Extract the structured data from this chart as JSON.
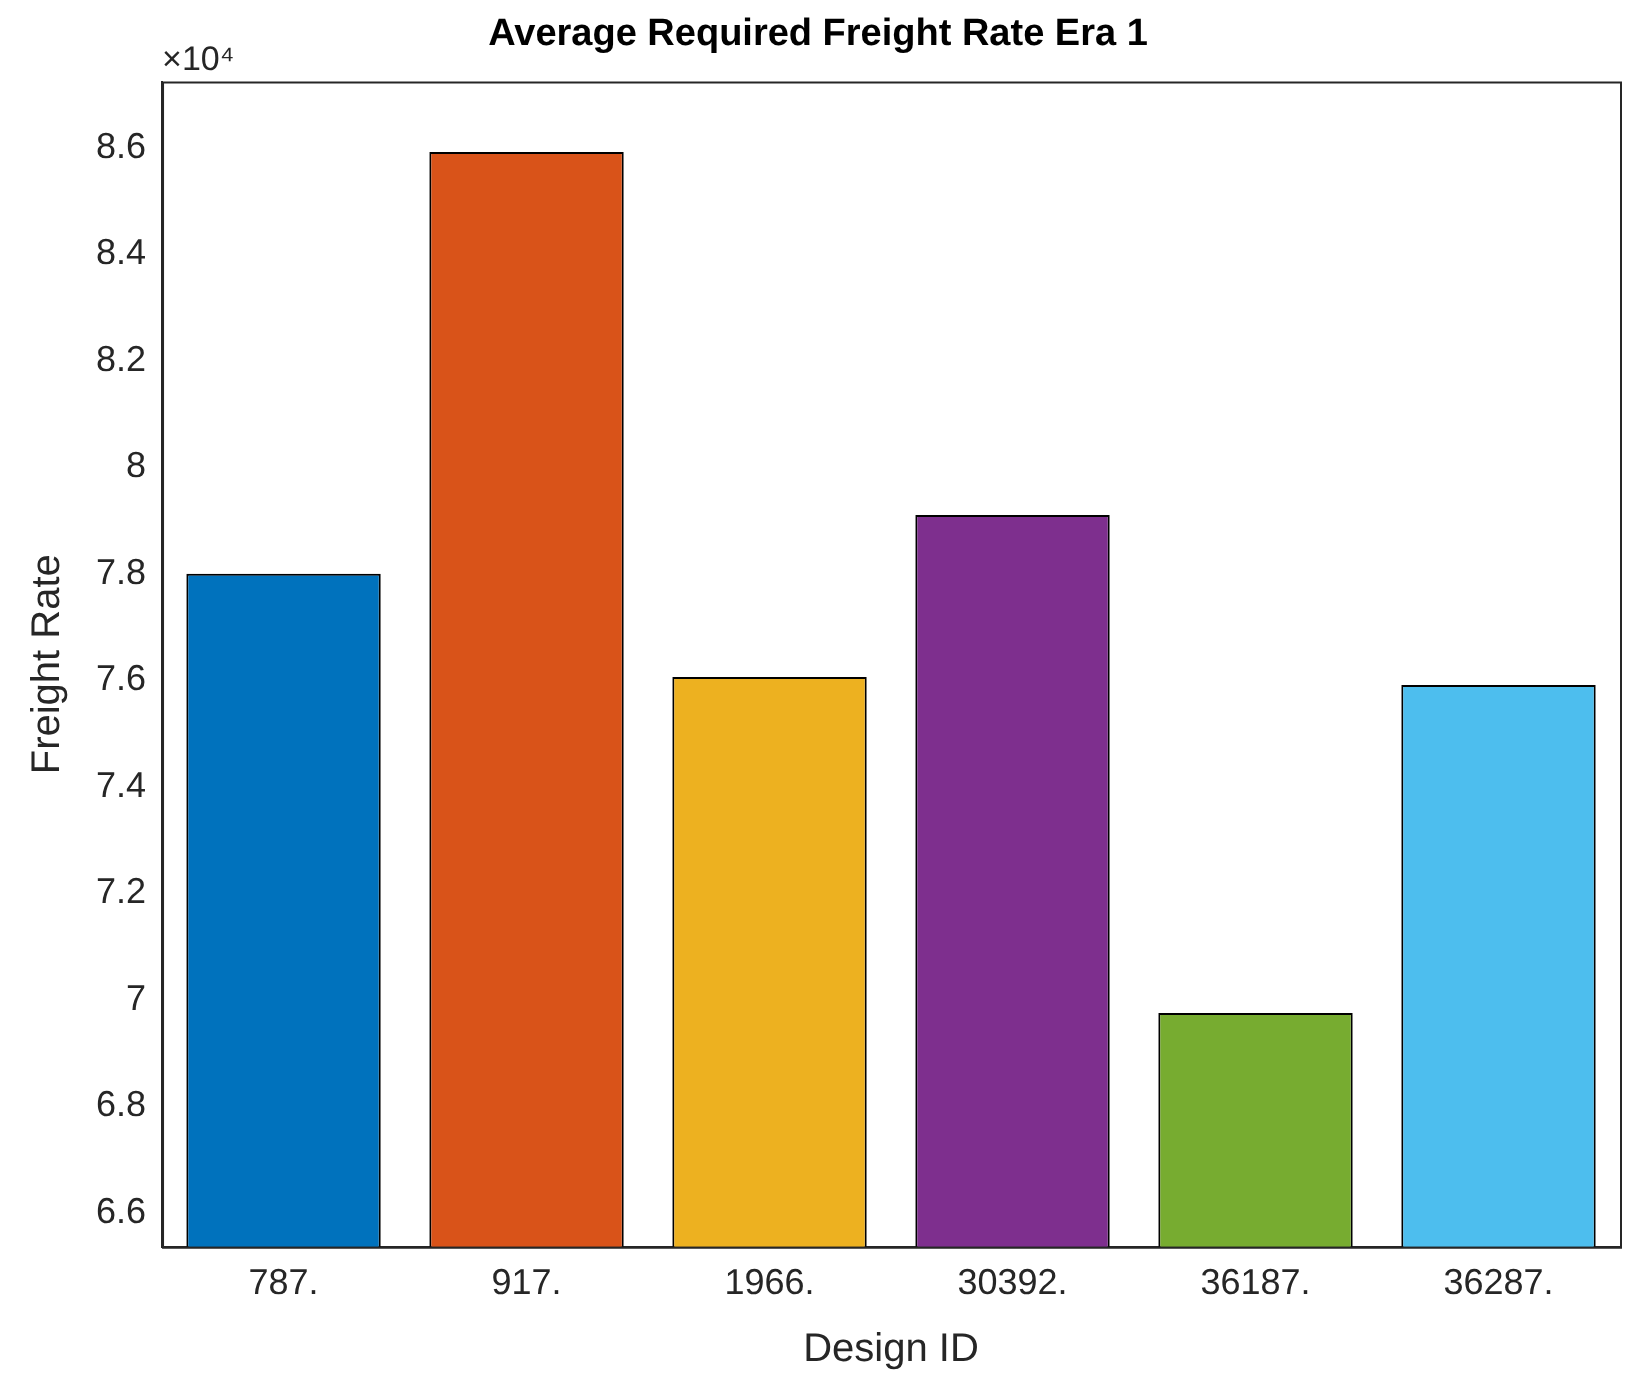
{
  "chart_data": {
    "type": "bar",
    "title": "Average Required Freight Rate Era 1",
    "xlabel": "Design ID",
    "ylabel": "Freight Rate",
    "annotations": [
      "×10⁴"
    ],
    "categories": [
      "787.",
      "917.",
      "1966.",
      "30392.",
      "36187.",
      "36287."
    ],
    "values": [
      7.8,
      8.592,
      7.606,
      7.91,
      6.975,
      7.591
    ],
    "colors": [
      "#0072bd",
      "#d95319",
      "#edb120",
      "#7e2f8e",
      "#77ac30",
      "#4dbeee"
    ],
    "ylim": [
      6.536,
      8.724
    ],
    "yticks": [
      6.6,
      6.8,
      7,
      7.2,
      7.4,
      7.6,
      7.8,
      8,
      8.2,
      8.4,
      8.6
    ],
    "grid": false,
    "legend": false
  }
}
